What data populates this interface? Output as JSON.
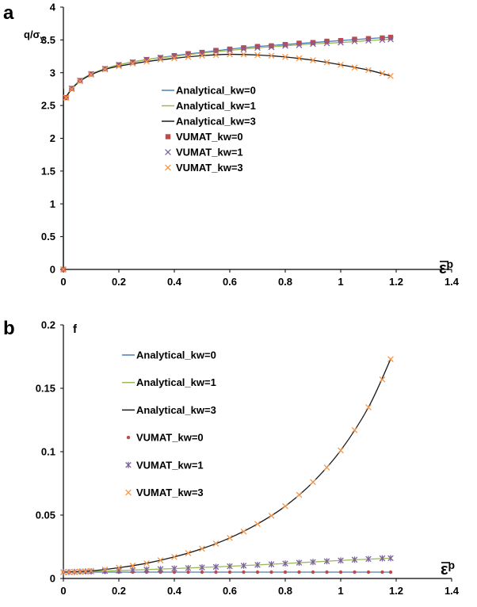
{
  "colors": {
    "analytical_kw0": "#4a7ebb",
    "analytical_kw1": "#98b954",
    "analytical_kw3": "#1a1a1a",
    "vumat_kw0": "#be4b48",
    "vumat_kw1": "#7d60a0",
    "vumat_kw3": "#f79646",
    "axis": "#000000"
  },
  "chart_data": [
    {
      "type": "line",
      "panel_letter": "a",
      "ylabel_main": "q/σ",
      "ylabel_sub": "y",
      "xlabel_main": "ε",
      "xlabel_sup": "p",
      "xlim": [
        0,
        1.4
      ],
      "ylim": [
        0,
        4
      ],
      "xticks": [
        "0",
        "0.2",
        "0.4",
        "0.6",
        "0.8",
        "1",
        "1.2",
        "1.4"
      ],
      "yticks": [
        "0",
        "0.5",
        "1",
        "1.5",
        "2",
        "2.5",
        "3",
        "3.5",
        "4"
      ],
      "grid": false,
      "legend_position": "center",
      "legend": [
        "Analytical_kw=0",
        "Analytical_kw=1",
        "Analytical_kw=3",
        "VUMAT_kw=0",
        "VUMAT_kw=1",
        "VUMAT_kw=3"
      ],
      "series": [
        {
          "name": "Analytical_kw=0",
          "kind": "line",
          "color_key": "analytical_kw0",
          "x": [
            0,
            0.0002,
            0.002,
            0.01,
            0.03,
            0.06,
            0.1,
            0.15,
            0.2,
            0.3,
            0.4,
            0.5,
            0.6,
            0.7,
            0.8,
            0.9,
            1.0,
            1.1,
            1.18
          ],
          "y": [
            0,
            2.55,
            2.6,
            2.64,
            2.76,
            2.88,
            2.98,
            3.06,
            3.12,
            3.2,
            3.26,
            3.31,
            3.36,
            3.4,
            3.43,
            3.46,
            3.49,
            3.52,
            3.54
          ]
        },
        {
          "name": "Analytical_kw=1",
          "kind": "line",
          "color_key": "analytical_kw1",
          "x": [
            0,
            0.0002,
            0.002,
            0.01,
            0.03,
            0.06,
            0.1,
            0.15,
            0.2,
            0.3,
            0.4,
            0.5,
            0.6,
            0.7,
            0.8,
            0.9,
            1.0,
            1.1,
            1.18
          ],
          "y": [
            0,
            2.55,
            2.6,
            2.64,
            2.76,
            2.88,
            2.98,
            3.06,
            3.12,
            3.2,
            3.25,
            3.3,
            3.34,
            3.38,
            3.41,
            3.44,
            3.46,
            3.49,
            3.51
          ]
        },
        {
          "name": "Analytical_kw=3",
          "kind": "line",
          "color_key": "analytical_kw3",
          "x": [
            0,
            0.0002,
            0.002,
            0.01,
            0.03,
            0.06,
            0.1,
            0.15,
            0.2,
            0.3,
            0.4,
            0.5,
            0.6,
            0.7,
            0.8,
            0.9,
            1.0,
            1.1,
            1.18
          ],
          "y": [
            0,
            2.55,
            2.6,
            2.63,
            2.75,
            2.87,
            2.97,
            3.05,
            3.1,
            3.17,
            3.22,
            3.26,
            3.28,
            3.27,
            3.24,
            3.19,
            3.12,
            3.04,
            2.95
          ]
        },
        {
          "name": "VUMAT_kw=0",
          "kind": "marker",
          "marker": "square",
          "color_key": "vumat_kw0",
          "x": [
            0,
            0.01,
            0.03,
            0.06,
            0.1,
            0.15,
            0.2,
            0.25,
            0.3,
            0.35,
            0.4,
            0.45,
            0.5,
            0.55,
            0.6,
            0.65,
            0.7,
            0.75,
            0.8,
            0.85,
            0.9,
            0.95,
            1.0,
            1.05,
            1.1,
            1.15,
            1.18
          ],
          "y": [
            0,
            2.62,
            2.76,
            2.88,
            2.98,
            3.06,
            3.12,
            3.16,
            3.2,
            3.23,
            3.26,
            3.29,
            3.31,
            3.34,
            3.36,
            3.38,
            3.4,
            3.41,
            3.43,
            3.45,
            3.46,
            3.48,
            3.49,
            3.51,
            3.52,
            3.53,
            3.54
          ]
        },
        {
          "name": "VUMAT_kw=1",
          "kind": "marker",
          "marker": "x",
          "color_key": "vumat_kw1",
          "x": [
            0,
            0.01,
            0.03,
            0.06,
            0.1,
            0.15,
            0.2,
            0.25,
            0.3,
            0.35,
            0.4,
            0.45,
            0.5,
            0.55,
            0.6,
            0.65,
            0.7,
            0.75,
            0.8,
            0.85,
            0.9,
            0.95,
            1.0,
            1.05,
            1.1,
            1.15,
            1.18
          ],
          "y": [
            0,
            2.62,
            2.76,
            2.88,
            2.98,
            3.06,
            3.12,
            3.16,
            3.2,
            3.23,
            3.25,
            3.28,
            3.3,
            3.32,
            3.34,
            3.36,
            3.38,
            3.39,
            3.41,
            3.42,
            3.44,
            3.45,
            3.46,
            3.48,
            3.49,
            3.5,
            3.51
          ]
        },
        {
          "name": "VUMAT_kw=3",
          "kind": "marker",
          "marker": "x",
          "color_key": "vumat_kw3",
          "x": [
            0,
            0.01,
            0.03,
            0.06,
            0.1,
            0.15,
            0.2,
            0.25,
            0.3,
            0.35,
            0.4,
            0.45,
            0.5,
            0.55,
            0.6,
            0.65,
            0.7,
            0.75,
            0.8,
            0.85,
            0.9,
            0.95,
            1.0,
            1.05,
            1.1,
            1.15,
            1.18
          ],
          "y": [
            0,
            2.62,
            2.75,
            2.87,
            2.97,
            3.05,
            3.1,
            3.14,
            3.17,
            3.2,
            3.22,
            3.24,
            3.26,
            3.27,
            3.28,
            3.28,
            3.27,
            3.26,
            3.24,
            3.22,
            3.19,
            3.16,
            3.12,
            3.08,
            3.04,
            2.99,
            2.95
          ]
        }
      ]
    },
    {
      "type": "line",
      "panel_letter": "b",
      "ylabel_main": "f",
      "xlabel_main": "ε",
      "xlabel_sup": "p",
      "xlim": [
        0,
        1.4
      ],
      "ylim": [
        0,
        0.2
      ],
      "xticks": [
        "0",
        "0.2",
        "0.4",
        "0.6",
        "0.8",
        "1",
        "1.2",
        "1.4"
      ],
      "yticks": [
        "0",
        "0.05",
        "0.1",
        "0.15",
        "0.2"
      ],
      "grid": false,
      "legend_position": "top-left",
      "legend": [
        "Analytical_kw=0",
        "Analytical_kw=1",
        "Analytical_kw=3",
        "VUMAT_kw=0",
        "VUMAT_kw=1",
        "VUMAT_kw=3"
      ],
      "series": [
        {
          "name": "Analytical_kw=0",
          "kind": "line",
          "color_key": "analytical_kw0",
          "x": [
            0,
            1.18
          ],
          "y": [
            0.005,
            0.005
          ]
        },
        {
          "name": "Analytical_kw=1",
          "kind": "line",
          "color_key": "analytical_kw1",
          "x": [
            0,
            0.2,
            0.4,
            0.6,
            0.8,
            1.0,
            1.18
          ],
          "y": [
            0.005,
            0.0062,
            0.0078,
            0.0096,
            0.0118,
            0.0142,
            0.016
          ]
        },
        {
          "name": "Analytical_kw=3",
          "kind": "line",
          "color_key": "analytical_kw3",
          "x": [
            0,
            0.1,
            0.2,
            0.3,
            0.4,
            0.5,
            0.6,
            0.7,
            0.8,
            0.9,
            1.0,
            1.1,
            1.18
          ],
          "y": [
            0.005,
            0.006,
            0.0085,
            0.012,
            0.017,
            0.0235,
            0.032,
            0.043,
            0.057,
            0.076,
            0.101,
            0.135,
            0.173
          ]
        },
        {
          "name": "VUMAT_kw=0",
          "kind": "marker",
          "marker": "dot",
          "color_key": "vumat_kw0",
          "x": [
            0,
            0.02,
            0.04,
            0.06,
            0.08,
            0.1,
            0.15,
            0.2,
            0.25,
            0.3,
            0.35,
            0.4,
            0.45,
            0.5,
            0.55,
            0.6,
            0.65,
            0.7,
            0.75,
            0.8,
            0.85,
            0.9,
            0.95,
            1.0,
            1.05,
            1.1,
            1.15,
            1.18
          ],
          "y": [
            0.005,
            0.005,
            0.005,
            0.005,
            0.005,
            0.005,
            0.005,
            0.005,
            0.005,
            0.005,
            0.005,
            0.005,
            0.005,
            0.005,
            0.005,
            0.005,
            0.005,
            0.005,
            0.005,
            0.005,
            0.005,
            0.005,
            0.005,
            0.005,
            0.005,
            0.005,
            0.005,
            0.005
          ]
        },
        {
          "name": "VUMAT_kw=1",
          "kind": "marker",
          "marker": "asterisk",
          "color_key": "vumat_kw1",
          "x": [
            0,
            0.02,
            0.04,
            0.06,
            0.08,
            0.1,
            0.15,
            0.2,
            0.25,
            0.3,
            0.35,
            0.4,
            0.45,
            0.5,
            0.55,
            0.6,
            0.65,
            0.7,
            0.75,
            0.8,
            0.85,
            0.9,
            0.95,
            1.0,
            1.05,
            1.1,
            1.15,
            1.18
          ],
          "y": [
            0.005,
            0.0051,
            0.0052,
            0.0054,
            0.0055,
            0.0056,
            0.0059,
            0.0062,
            0.0066,
            0.007,
            0.0074,
            0.0078,
            0.0082,
            0.0087,
            0.0091,
            0.0096,
            0.0101,
            0.0107,
            0.0112,
            0.0118,
            0.0124,
            0.013,
            0.0136,
            0.0142,
            0.0148,
            0.0154,
            0.0159,
            0.016
          ]
        },
        {
          "name": "VUMAT_kw=3",
          "kind": "marker",
          "marker": "x",
          "color_key": "vumat_kw3",
          "x": [
            0,
            0.02,
            0.04,
            0.06,
            0.08,
            0.1,
            0.15,
            0.2,
            0.25,
            0.3,
            0.35,
            0.4,
            0.45,
            0.5,
            0.55,
            0.6,
            0.65,
            0.7,
            0.75,
            0.8,
            0.85,
            0.9,
            0.95,
            1.0,
            1.05,
            1.1,
            1.15,
            1.18
          ],
          "y": [
            0.005,
            0.005,
            0.0051,
            0.0053,
            0.0056,
            0.006,
            0.007,
            0.0085,
            0.0101,
            0.012,
            0.0143,
            0.017,
            0.02,
            0.0235,
            0.0275,
            0.032,
            0.037,
            0.043,
            0.0495,
            0.057,
            0.066,
            0.076,
            0.0875,
            0.101,
            0.117,
            0.135,
            0.157,
            0.173
          ]
        }
      ]
    }
  ]
}
